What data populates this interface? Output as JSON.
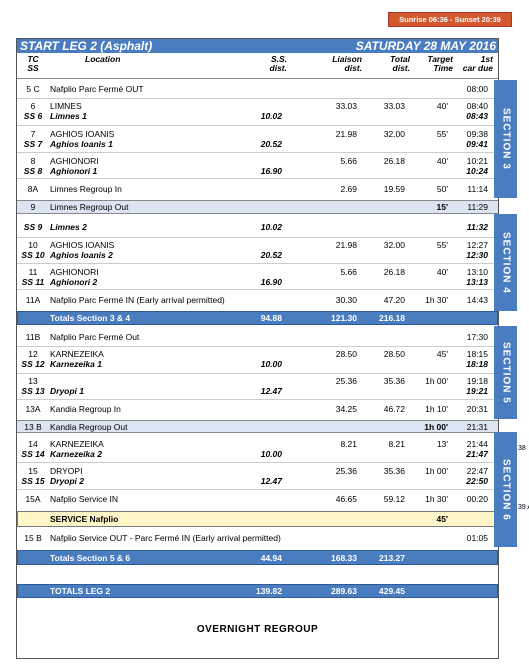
{
  "sun_badge": "Sunrise 06:36 - Sunset 20:39",
  "header": {
    "title": "START LEG 2 (Asphalt)",
    "date": "SATURDAY 28 MAY 2016"
  },
  "columns": {
    "tc": "TC",
    "ss": "SS",
    "location": "Location",
    "ss_dist": [
      "S.S.",
      "dist."
    ],
    "liaison": [
      "Liaison",
      "dist."
    ],
    "total": [
      "Total",
      "dist."
    ],
    "target": [
      "Target",
      "Time"
    ],
    "due": [
      "1st",
      "car due"
    ]
  },
  "rows": [
    {
      "tc": "5 C",
      "location": "Nafplio Parc Fermé OUT",
      "due": "08:00"
    },
    {
      "tc": "6",
      "ss": "SS 6",
      "location": "LIMNES",
      "ss_location": "Limnes 1",
      "ss_dist": "10.02",
      "liaison": "33.03",
      "total": "33.03",
      "target": "40'",
      "due": "08:40",
      "due_ss": "08:43"
    },
    {
      "tc": "7",
      "ss": "SS 7",
      "location": "AGHIOS IOANIS",
      "ss_location": "Aghios Ioanis 1",
      "ss_dist": "20.52",
      "liaison": "21.98",
      "total": "32.00",
      "target": "55'",
      "due": "09:38",
      "due_ss": "09:41"
    },
    {
      "tc": "8",
      "ss": "SS 8",
      "location": "AGHIONORI",
      "ss_location": "Aghionori 1",
      "ss_dist": "16.90",
      "liaison": "5.66",
      "total": "26.18",
      "target": "40'",
      "due": "10:21",
      "due_ss": "10:24"
    },
    {
      "tc": "8A",
      "location": "Limnes Regroup In",
      "liaison": "2.69",
      "total": "19.59",
      "target": "50'",
      "due": "11:14"
    },
    {
      "tc": "9",
      "location": "Limnes Regroup Out",
      "target": "15'",
      "due": "11:29"
    },
    {
      "ss": "SS 9",
      "ss_location": "Limnes 2",
      "ss_dist": "10.02",
      "due_ss": "11:32"
    },
    {
      "tc": "10",
      "ss": "SS 10",
      "location": "AGHIOS IOANIS",
      "ss_location": "Aghios Ioanis 2",
      "ss_dist": "20.52",
      "liaison": "21.98",
      "total": "32.00",
      "target": "55'",
      "due": "12:27",
      "due_ss": "12:30"
    },
    {
      "tc": "11",
      "ss": "SS 11",
      "location": "AGHIONORI",
      "ss_location": "Aghionori 2",
      "ss_dist": "16.90",
      "liaison": "5.66",
      "total": "26.18",
      "target": "40'",
      "due": "13:10",
      "due_ss": "13:13"
    },
    {
      "tc": "11A",
      "location": "Nafplio Parc Fermé IN (Early arrival permitted)",
      "liaison": "30.30",
      "total": "47.20",
      "target": "1h 30'",
      "due": "14:43"
    },
    {
      "label": "Totals Section 3 & 4",
      "ss_dist": "94.88",
      "liaison": "121.30",
      "total": "216.18"
    },
    {
      "tc": "11B",
      "location": "Nafplio Parc Fermé Out",
      "due": "17:30"
    },
    {
      "tc": "12",
      "ss": "SS 12",
      "location": "KARNEZEIKA",
      "ss_location": "Karnezeika 1",
      "ss_dist": "10.00",
      "liaison": "28.50",
      "total": "28.50",
      "target": "45'",
      "due": "18:15",
      "due_ss": "18:18"
    },
    {
      "tc": "13",
      "ss": "SS 13",
      "ss_location": "Dryopi 1",
      "ss_dist": "12.47",
      "liaison": "25.36",
      "total": "35.36",
      "target": "1h 00'",
      "due": "19:18",
      "due_ss": "19:21"
    },
    {
      "tc": "13A",
      "location": "Kandia Regroup In",
      "liaison": "34.25",
      "total": "46.72",
      "target": "1h 10'",
      "due": "20:31"
    },
    {
      "tc": "13 B",
      "location": "Kandia Regroup Out",
      "target": "1h 00'",
      "due": "21:31"
    },
    {
      "tc": "14",
      "ss": "SS 14",
      "location": "KARNEZEIKA",
      "ss_location": "Karnezeika 2",
      "ss_dist": "10.00",
      "liaison": "8.21",
      "total": "8.21",
      "target": "13'",
      "due": "21:44",
      "due_ss": "21:47"
    },
    {
      "tc": "15",
      "ss": "SS 15",
      "location": "DRYOPI",
      "ss_location": "Dryopi 2",
      "ss_dist": "12.47",
      "liaison": "25.36",
      "total": "35.36",
      "target": "1h 00'",
      "due": "22:47",
      "due_ss": "22:50"
    },
    {
      "tc": "15A",
      "location": "Nafplio Service IN",
      "liaison": "46.65",
      "total": "59.12",
      "target": "1h 30'",
      "due": "00:20"
    },
    {
      "label": "SERVICE Nafplio",
      "target": "45'"
    },
    {
      "tc": "15 B",
      "location": "Nafplio Service OUT - Parc Fermé IN (Early arrival permitted)",
      "due": "01:05"
    },
    {
      "label": "Totals Section 5 & 6",
      "ss_dist": "44.94",
      "liaison": "168.33",
      "total": "213.27"
    },
    {
      "label": "TOTALS LEG 2",
      "ss_dist": "139.82",
      "liaison": "289.63",
      "total": "429.45"
    }
  ],
  "sections": [
    "SECTION 3",
    "SECTION 4",
    "SECTION 5",
    "SECTION 6"
  ],
  "margin_notes": [
    "38",
    "39 A"
  ],
  "footer": "OVERNIGHT REGROUP"
}
